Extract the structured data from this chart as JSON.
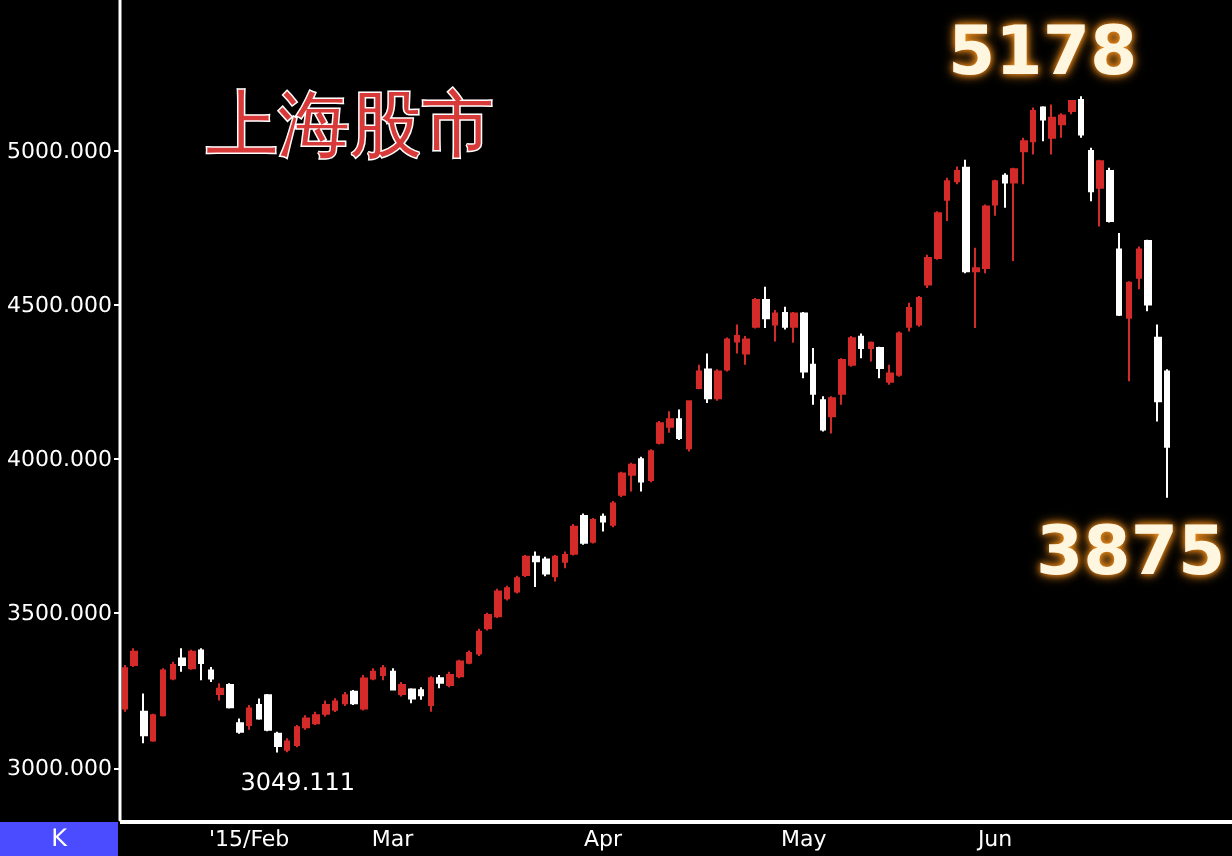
{
  "chart_data": {
    "type": "candlestick",
    "title": "上海股市",
    "categories": [
      null,
      null,
      null,
      null,
      null,
      null,
      null,
      null,
      null,
      null,
      null,
      null,
      null,
      "'15/Feb",
      null,
      null,
      null,
      null,
      null,
      null,
      null,
      null,
      null,
      null,
      null,
      null,
      null,
      null,
      "Mar",
      null,
      null,
      null,
      null,
      null,
      null,
      null,
      null,
      null,
      null,
      null,
      null,
      null,
      null,
      null,
      null,
      null,
      null,
      null,
      null,
      null,
      "Apr",
      null,
      null,
      null,
      null,
      null,
      null,
      null,
      null,
      null,
      null,
      null,
      null,
      null,
      null,
      null,
      null,
      null,
      null,
      null,
      null,
      "May",
      null,
      null,
      null,
      null,
      null,
      null,
      null,
      null,
      null,
      null,
      null,
      null,
      null,
      null,
      null,
      null,
      null,
      null,
      null,
      "Jun",
      null,
      null,
      null,
      null,
      null,
      null,
      null,
      null,
      null,
      null,
      null,
      null,
      null,
      null,
      null,
      null,
      null,
      null
    ],
    "ohlc": [
      [
        3192,
        3333,
        3181,
        3322
      ],
      [
        3333,
        3387,
        3326,
        3376
      ],
      [
        3181,
        3240,
        3079,
        3105
      ],
      [
        3088,
        3175,
        3084,
        3170
      ],
      [
        3170,
        3322,
        3166,
        3315
      ],
      [
        3289,
        3343,
        3283,
        3333
      ],
      [
        3354,
        3387,
        3311,
        3333
      ],
      [
        3322,
        3382,
        3317,
        3376
      ],
      [
        3380,
        3387,
        3283,
        3339
      ],
      [
        3315,
        3326,
        3278,
        3289
      ],
      [
        3239,
        3274,
        3218,
        3256
      ],
      [
        3268,
        3274,
        3192,
        3196
      ],
      [
        3144,
        3159,
        3110,
        3116
      ],
      [
        3138,
        3203,
        3123,
        3192
      ],
      [
        3203,
        3224,
        3155,
        3159
      ],
      [
        3235,
        3239,
        3118,
        3123
      ],
      [
        3110,
        3116,
        3049.111,
        3070
      ],
      [
        3058,
        3095,
        3050,
        3085
      ],
      [
        3073,
        3138,
        3066,
        3131
      ],
      [
        3131,
        3170,
        3123,
        3159
      ],
      [
        3144,
        3181,
        3138,
        3170
      ],
      [
        3175,
        3218,
        3166,
        3203
      ],
      [
        3188,
        3225,
        3180,
        3214
      ],
      [
        3209,
        3245,
        3200,
        3235
      ],
      [
        3246,
        3252,
        3203,
        3209
      ],
      [
        3192,
        3300,
        3185,
        3289
      ],
      [
        3289,
        3322,
        3283,
        3311
      ],
      [
        3300,
        3333,
        3283,
        3322
      ],
      [
        3311,
        3322,
        3250,
        3253
      ],
      [
        3239,
        3278,
        3231,
        3268
      ],
      [
        3253,
        3257,
        3209,
        3224
      ],
      [
        3251,
        3261,
        3220,
        3235
      ],
      [
        3203,
        3296,
        3181,
        3290
      ],
      [
        3290,
        3300,
        3257,
        3275
      ],
      [
        3268,
        3311,
        3261,
        3300
      ],
      [
        3296,
        3350,
        3290,
        3344
      ],
      [
        3340,
        3380,
        3335,
        3372
      ],
      [
        3370,
        3450,
        3362,
        3441
      ],
      [
        3452,
        3502,
        3445,
        3495
      ],
      [
        3491,
        3580,
        3485,
        3571
      ],
      [
        3549,
        3590,
        3542,
        3582
      ],
      [
        3571,
        3622,
        3565,
        3614
      ],
      [
        3625,
        3690,
        3618,
        3684
      ],
      [
        3684,
        3701,
        3586,
        3669
      ],
      [
        3675,
        3684,
        3621,
        3630
      ],
      [
        3621,
        3690,
        3604,
        3684
      ],
      [
        3668,
        3701,
        3647,
        3690
      ],
      [
        3694,
        3790,
        3688,
        3781
      ],
      [
        3816,
        3824,
        3723,
        3729
      ],
      [
        3733,
        3810,
        3727,
        3803
      ],
      [
        3814,
        3824,
        3766,
        3798
      ],
      [
        3788,
        3865,
        3780,
        3857
      ],
      [
        3885,
        3960,
        3878,
        3954
      ],
      [
        3950,
        3989,
        3896,
        3982
      ],
      [
        4000,
        4008,
        3896,
        3928
      ],
      [
        3933,
        4033,
        3926,
        4026
      ],
      [
        4054,
        4124,
        4048,
        4117
      ],
      [
        4106,
        4156,
        4086,
        4130
      ],
      [
        4130,
        4162,
        4063,
        4069
      ],
      [
        4036,
        4192,
        4025,
        4188
      ],
      [
        4231,
        4307,
        4227,
        4285
      ],
      [
        4291,
        4343,
        4183,
        4198
      ],
      [
        4198,
        4292,
        4190,
        4285
      ],
      [
        4291,
        4395,
        4285,
        4389
      ],
      [
        4382,
        4437,
        4343,
        4400
      ],
      [
        4343,
        4400,
        4307,
        4389
      ],
      [
        4430,
        4523,
        4424,
        4517
      ],
      [
        4517,
        4560,
        4426,
        4458
      ],
      [
        4437,
        4484,
        4382,
        4473
      ],
      [
        4475,
        4495,
        4421,
        4430
      ],
      [
        4430,
        4478,
        4378,
        4473
      ],
      [
        4473,
        4478,
        4263,
        4285
      ],
      [
        4307,
        4361,
        4177,
        4213
      ],
      [
        4192,
        4205,
        4090,
        4097
      ],
      [
        4140,
        4205,
        4084,
        4198
      ],
      [
        4213,
        4328,
        4177,
        4322
      ],
      [
        4307,
        4400,
        4300,
        4393
      ],
      [
        4398,
        4408,
        4328,
        4361
      ],
      [
        4361,
        4382,
        4317,
        4378
      ],
      [
        4361,
        4365,
        4263,
        4296
      ],
      [
        4252,
        4307,
        4242,
        4278
      ],
      [
        4274,
        4415,
        4268,
        4408
      ],
      [
        4430,
        4508,
        4415,
        4491
      ],
      [
        4437,
        4530,
        4430,
        4523
      ],
      [
        4567,
        4664,
        4556,
        4653
      ],
      [
        4653,
        4805,
        4647,
        4798
      ],
      [
        4842,
        4913,
        4773,
        4902
      ],
      [
        4902,
        4950,
        4892,
        4935
      ],
      [
        4946,
        4972,
        4604,
        4610
      ],
      [
        4610,
        4686,
        4426,
        4620
      ],
      [
        4621,
        4827,
        4604,
        4820
      ],
      [
        4827,
        4907,
        4790,
        4902
      ],
      [
        4920,
        4928,
        4816,
        4898
      ],
      [
        4898,
        4946,
        4643,
        4941
      ],
      [
        4999,
        5043,
        4892,
        5032
      ],
      [
        5032,
        5141,
        4989,
        5130
      ],
      [
        5141,
        5145,
        5032,
        5102
      ],
      [
        5043,
        5151,
        4989,
        5108
      ],
      [
        5087,
        5123,
        5043,
        5115
      ],
      [
        5130,
        5166,
        5119,
        5162
      ],
      [
        5166,
        5178,
        5043,
        5054
      ],
      [
        5000,
        5011,
        4837,
        4870
      ],
      [
        4881,
        4972,
        4755,
        4967
      ],
      [
        4935,
        4946,
        4768,
        4773
      ],
      [
        4681,
        4734,
        4465,
        4469
      ],
      [
        4459,
        4578,
        4253,
        4573
      ],
      [
        4589,
        4690,
        4552,
        4681
      ],
      [
        4708,
        4712,
        4480,
        4502
      ],
      [
        4394,
        4437,
        4123,
        4188
      ],
      [
        4285,
        4292,
        3875,
        4041
      ]
    ],
    "colors": [
      "#d42a2a",
      "#d42a2a",
      "#ffffff",
      "#d42a2a",
      "#d42a2a",
      "#d42a2a",
      "#ffffff",
      "#d42a2a",
      "#ffffff",
      "#ffffff",
      "#d42a2a",
      "#ffffff",
      "#ffffff",
      "#d42a2a",
      "#ffffff",
      "#ffffff",
      "#ffffff",
      "#d42a2a",
      "#d42a2a",
      "#d42a2a",
      "#d42a2a",
      "#d42a2a",
      "#d42a2a",
      "#d42a2a",
      "#ffffff",
      "#d42a2a",
      "#d42a2a",
      "#d42a2a",
      "#ffffff",
      "#d42a2a",
      "#ffffff",
      "#ffffff",
      "#d42a2a",
      "#ffffff",
      "#d42a2a",
      "#d42a2a",
      "#d42a2a",
      "#d42a2a",
      "#d42a2a",
      "#d42a2a",
      "#d42a2a",
      "#d42a2a",
      "#d42a2a",
      "#ffffff",
      "#ffffff",
      "#d42a2a",
      "#d42a2a",
      "#d42a2a",
      "#ffffff",
      "#d42a2a",
      "#ffffff",
      "#d42a2a",
      "#d42a2a",
      "#d42a2a",
      "#ffffff",
      "#d42a2a",
      "#d42a2a",
      "#d42a2a",
      "#ffffff",
      "#d42a2a",
      "#d42a2a",
      "#ffffff",
      "#d42a2a",
      "#d42a2a",
      "#d42a2a",
      "#d42a2a",
      "#d42a2a",
      "#ffffff",
      "#d42a2a",
      "#ffffff",
      "#d42a2a",
      "#ffffff",
      "#ffffff",
      "#ffffff",
      "#d42a2a",
      "#d42a2a",
      "#d42a2a",
      "#ffffff",
      "#d42a2a",
      "#ffffff",
      "#d42a2a",
      "#d42a2a",
      "#d42a2a",
      "#d42a2a",
      "#d42a2a",
      "#d42a2a",
      "#d42a2a",
      "#d42a2a",
      "#ffffff",
      "#d42a2a",
      "#d42a2a",
      "#d42a2a",
      "#ffffff",
      "#d42a2a",
      "#d42a2a",
      "#d42a2a",
      "#ffffff",
      "#d42a2a",
      "#d42a2a",
      "#d42a2a",
      "#ffffff",
      "#ffffff",
      "#d42a2a",
      "#ffffff",
      "#ffffff",
      "#d42a2a",
      "#d42a2a",
      "#ffffff",
      "#ffffff",
      "#ffffff"
    ],
    "ylim": [
      2830,
      5490
    ],
    "yticks": [
      {
        "value": 3000,
        "label": "3000.000"
      },
      {
        "value": 3500,
        "label": "3500.000"
      },
      {
        "value": 4000,
        "label": "4000.000"
      },
      {
        "value": 4500,
        "label": "4500.000"
      },
      {
        "value": 5000,
        "label": "5000.000"
      }
    ],
    "annotations": [
      "K",
      "5178",
      "3875",
      {
        "text": "3049.111",
        "y": 3049.111
      }
    ]
  }
}
